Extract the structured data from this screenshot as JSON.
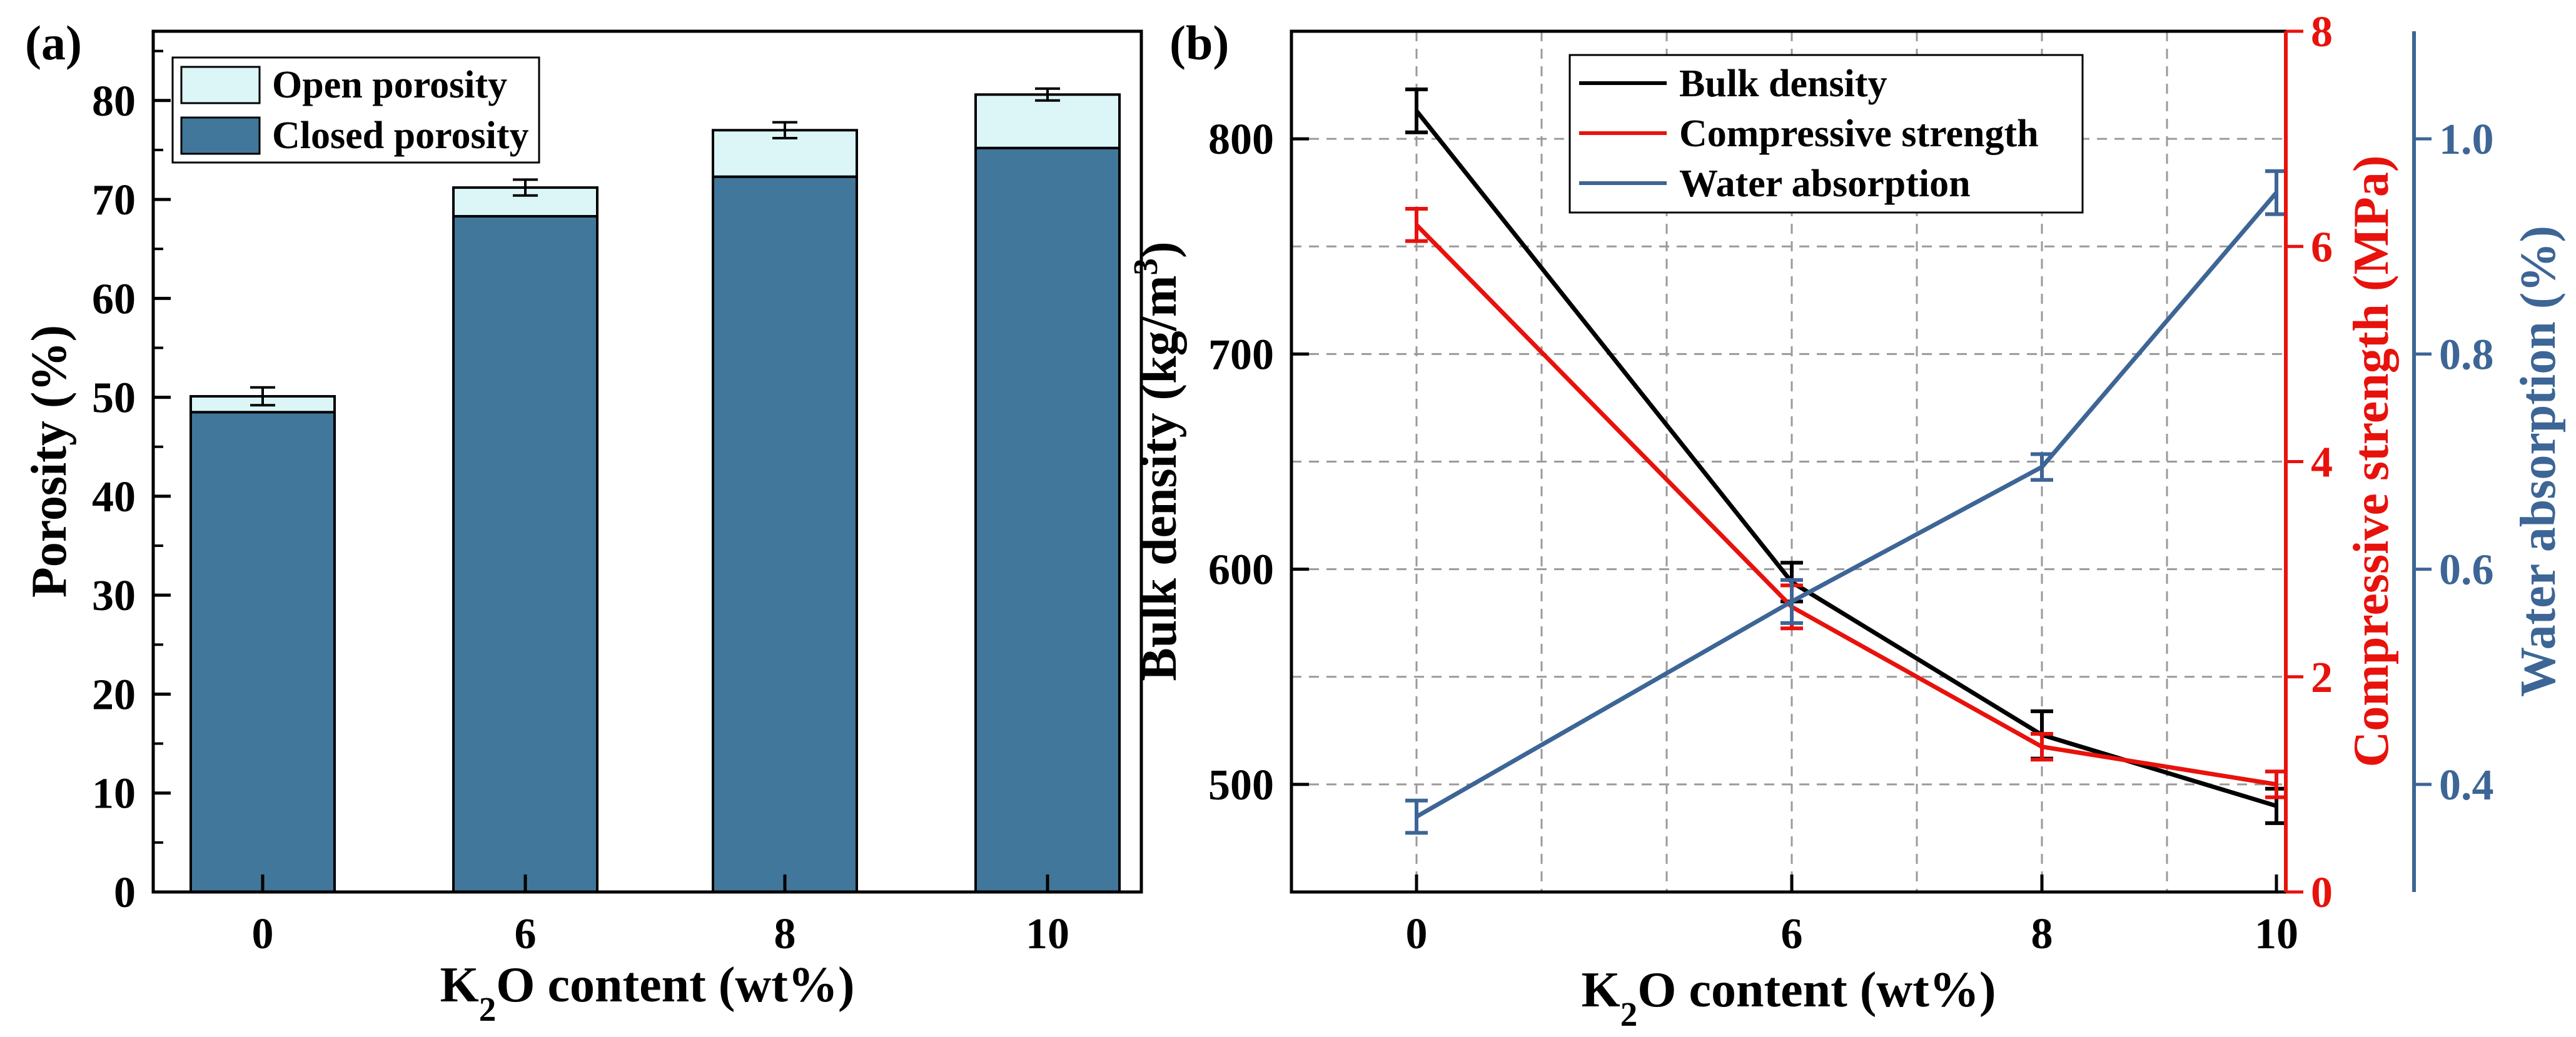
{
  "chart_data": [
    {
      "panel": "(a)",
      "type": "bar",
      "stacked": true,
      "categories": [
        "0",
        "6",
        "8",
        "10"
      ],
      "series": [
        {
          "name": "Closed porosity",
          "color": "#41779a",
          "values": [
            48.5,
            68.3,
            72.3,
            75.2
          ]
        },
        {
          "name": "Open porosity",
          "color": "#dcf5f7",
          "values": [
            1.6,
            2.9,
            4.7,
            5.4
          ]
        }
      ],
      "totals": [
        50.1,
        71.2,
        77.0,
        80.6
      ],
      "errors": [
        0.9,
        0.8,
        0.8,
        0.6
      ],
      "xlabel_prefix": "K",
      "xlabel_sub": "2",
      "xlabel_suffix": "O content (wt%)",
      "ylabel": "Porosity (%)",
      "ylim": [
        0,
        87
      ],
      "yticks": [
        "0",
        "10",
        "20",
        "30",
        "40",
        "50",
        "60",
        "70",
        "80"
      ],
      "legend": [
        "Open porosity",
        "Closed porosity"
      ],
      "legend_position": "top-left"
    },
    {
      "panel": "(b)",
      "type": "line",
      "x": [
        0,
        6,
        8,
        10
      ],
      "xticks": [
        "0",
        "6",
        "8",
        "10"
      ],
      "grid": true,
      "series": [
        {
          "name": "Bulk density",
          "axis": "left",
          "color": "#000000",
          "values": [
            813,
            594,
            523,
            490
          ],
          "errors": [
            10,
            9,
            11,
            8
          ]
        },
        {
          "name": "Compressive strength",
          "axis": "right1",
          "color": "#e8120c",
          "values": [
            6.2,
            2.65,
            1.35,
            1.0
          ],
          "errors": [
            0.15,
            0.2,
            0.12,
            0.12
          ]
        },
        {
          "name": "Water absorption",
          "axis": "right2",
          "color": "#3d6596",
          "values": [
            0.37,
            0.57,
            0.695,
            0.95
          ],
          "errors": [
            0.015,
            0.02,
            0.012,
            0.02
          ]
        }
      ],
      "xlabel_prefix": "K",
      "xlabel_sub": "2",
      "xlabel_suffix": "O content (wt%)",
      "ylabel_left_prefix": "Bulk density (kg/m",
      "ylabel_left_sup": "3",
      "ylabel_left_suffix": ")",
      "ylabel_right1": "Compressive strength (MPa)",
      "ylabel_right2": "Water absorption (%)",
      "yticks_left": [
        "500",
        "600",
        "700",
        "800"
      ],
      "yticks_right1": [
        "0",
        "2",
        "4",
        "6",
        "8"
      ],
      "yticks_right2": [
        "0.4",
        "0.6",
        "0.8",
        "1.0"
      ],
      "legend": [
        "Bulk density",
        "Compressive strength",
        "Water absorption"
      ],
      "legend_position": "top-center"
    }
  ]
}
